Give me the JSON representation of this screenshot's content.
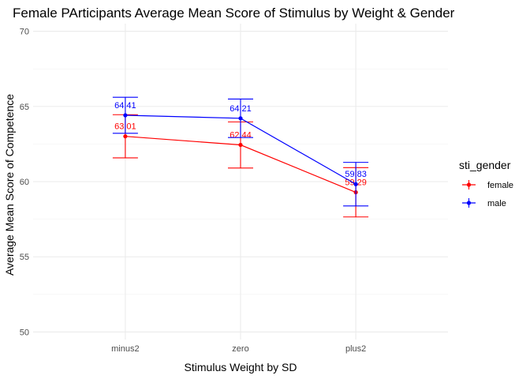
{
  "chart_data": {
    "type": "line",
    "title": "Female PArticipants Average Mean Score of Stimulus by Weight & Gender",
    "xlabel": "Stimulus Weight by SD",
    "ylabel": "Average Mean Score of Competence",
    "categories": [
      "minus2",
      "zero",
      "plus2"
    ],
    "ylim": [
      49.5,
      70.5
    ],
    "yticks": [
      50,
      55,
      60,
      65,
      70
    ],
    "grid": true,
    "legend": {
      "title": "sti_gender",
      "position": "right"
    },
    "series": [
      {
        "name": "female",
        "color": "#ff0000",
        "values": [
          63.01,
          62.44,
          59.29
        ],
        "labels": [
          "63.01",
          "62.44",
          "59.29"
        ],
        "err_low": [
          61.58,
          60.9,
          57.65
        ],
        "err_high": [
          64.45,
          63.97,
          60.93
        ]
      },
      {
        "name": "male",
        "color": "#0000ff",
        "values": [
          64.41,
          64.21,
          59.83
        ],
        "labels": [
          "64.41",
          "64.21",
          "59.83"
        ],
        "err_low": [
          63.21,
          62.93,
          58.38
        ],
        "err_high": [
          65.61,
          65.49,
          61.28
        ]
      }
    ]
  }
}
